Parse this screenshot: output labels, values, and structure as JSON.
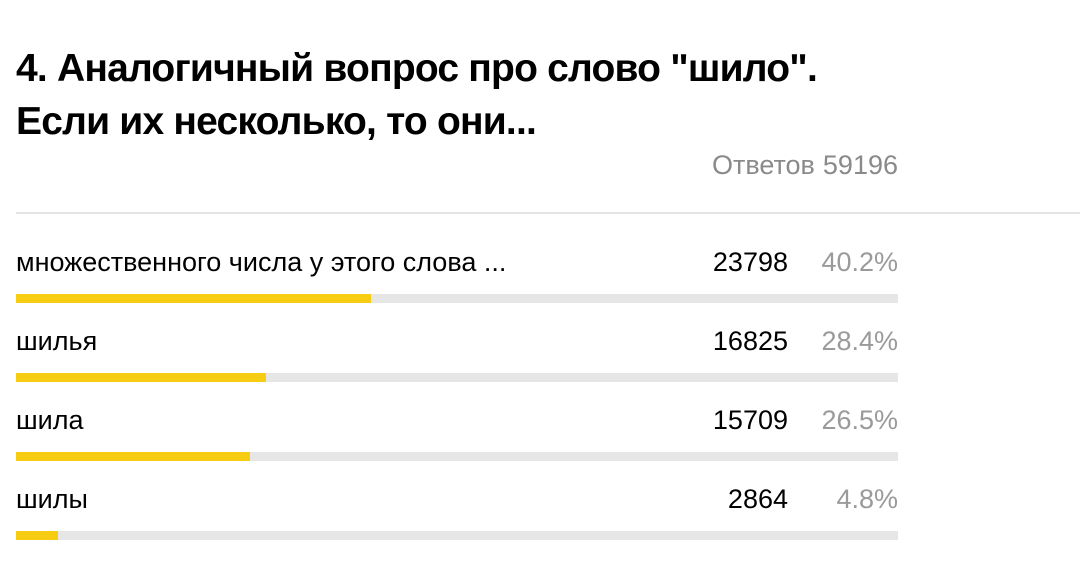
{
  "question": {
    "title_line1": "4. Аналогичный вопрос про слово \"шило\".",
    "title_line2": "Если их несколько, то они..."
  },
  "summary": {
    "responses_label": "Ответов",
    "responses_count": "59196"
  },
  "colors": {
    "bar_fill": "#f7cd13",
    "bar_track": "#e6e6e6"
  },
  "options": [
    {
      "label": "множественного числа у этого слова ...",
      "count": "23798",
      "percent": "40.2%",
      "fraction": 0.402
    },
    {
      "label": "шилья",
      "count": "16825",
      "percent": "28.4%",
      "fraction": 0.284
    },
    {
      "label": "шила",
      "count": "15709",
      "percent": "26.5%",
      "fraction": 0.265
    },
    {
      "label": "шилы",
      "count": "2864",
      "percent": "4.8%",
      "fraction": 0.048
    }
  ]
}
